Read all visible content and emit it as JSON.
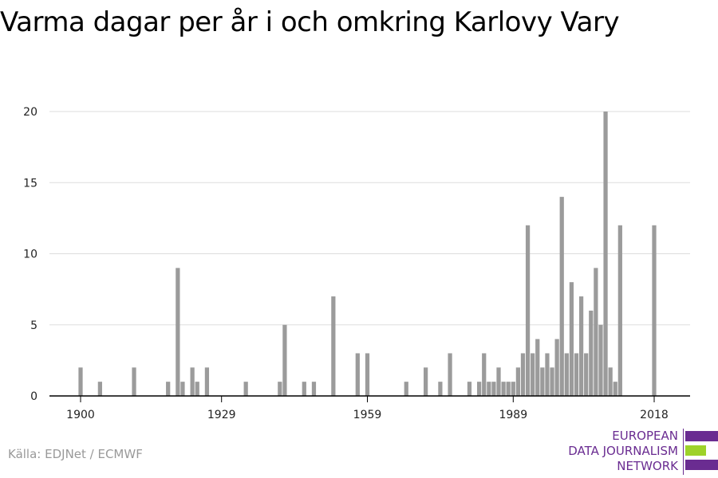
{
  "title": "Varma dagar per år i och omkring Karlovy Vary",
  "source": "Källa: EDJNet / ECMWF",
  "logo": {
    "lines": [
      "EUROPEAN",
      "DATA JOURNALISM",
      "NETWORK"
    ],
    "text_color": "#6a2c91",
    "bar_colors": [
      "#6a2c91",
      "#9ed22a",
      "#6a2c91"
    ]
  },
  "colors": {
    "bar": "#9b9b9b",
    "grid": "#dddddd",
    "axis": "#000000"
  },
  "chart_data": {
    "type": "bar",
    "title": "",
    "xlabel": "",
    "ylabel": "",
    "xlim": [
      1900,
      2018
    ],
    "ylim": [
      0,
      20
    ],
    "x_ticks": [
      1900,
      1929,
      1959,
      1989,
      2018
    ],
    "y_ticks": [
      0,
      5,
      10,
      15,
      20
    ],
    "grid": true,
    "x": [
      1900,
      1904,
      1911,
      1918,
      1920,
      1921,
      1923,
      1924,
      1926,
      1934,
      1941,
      1942,
      1946,
      1948,
      1952,
      1957,
      1959,
      1967,
      1971,
      1974,
      1976,
      1980,
      1982,
      1983,
      1984,
      1985,
      1986,
      1987,
      1988,
      1989,
      1990,
      1991,
      1992,
      1993,
      1994,
      1995,
      1996,
      1997,
      1998,
      1999,
      2000,
      2001,
      2002,
      2003,
      2004,
      2005,
      2006,
      2007,
      2008,
      2009,
      2010,
      2011,
      2012,
      2013,
      2014,
      2015,
      2016,
      2017,
      2018
    ],
    "values": [
      2,
      1,
      2,
      1,
      9,
      1,
      2,
      1,
      2,
      1,
      1,
      5,
      1,
      1,
      7,
      3,
      3,
      1,
      2,
      1,
      3,
      1,
      1,
      3,
      1,
      1,
      2,
      1,
      1,
      1,
      2,
      3,
      12,
      3,
      4,
      2,
      3,
      2,
      4,
      14,
      3,
      8,
      3,
      7,
      3,
      6,
      9,
      5,
      20,
      2,
      1,
      12,
      0,
      0,
      0,
      0,
      0,
      0,
      12
    ]
  }
}
